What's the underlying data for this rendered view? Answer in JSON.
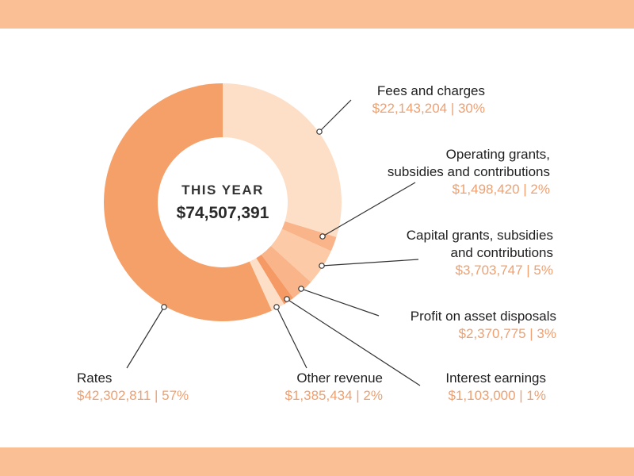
{
  "colors": {
    "band": "#fbbf95",
    "label_value": "#f0a070",
    "leader": "#333333"
  },
  "center": {
    "title": "THIS YEAR",
    "total": "$74,507,391"
  },
  "chart_data": {
    "type": "pie",
    "donut": true,
    "total": 74507391,
    "slices": [
      {
        "name": "Fees and charges",
        "value": 22143204,
        "percent": 30,
        "display": "$22,143,204 | 30%",
        "color": "#fddfc8"
      },
      {
        "name": "Operating grants, subsidies and contributions",
        "value": 1498420,
        "percent": 2,
        "display": "$1,498,420 | 2%",
        "color": "#f9b48a"
      },
      {
        "name": "Capital grants, subsidies and contributions",
        "value": 3703747,
        "percent": 5,
        "display": "$3,703,747 | 5%",
        "color": "#fccaa6"
      },
      {
        "name": "Profit on asset disposals",
        "value": 2370775,
        "percent": 3,
        "display": "$2,370,775 | 3%",
        "color": "#f9b48a"
      },
      {
        "name": "Interest earnings",
        "value": 1103000,
        "percent": 1,
        "display": "$1,103,000 | 1%",
        "color": "#f59965"
      },
      {
        "name": "Other revenue",
        "value": 1385434,
        "percent": 2,
        "display": "$1,385,434 | 2%",
        "color": "#fddfc8"
      },
      {
        "name": "Rates",
        "value": 42302811,
        "percent": 57,
        "display": "$42,302,811 | 57%",
        "color": "#f5a068"
      }
    ]
  }
}
